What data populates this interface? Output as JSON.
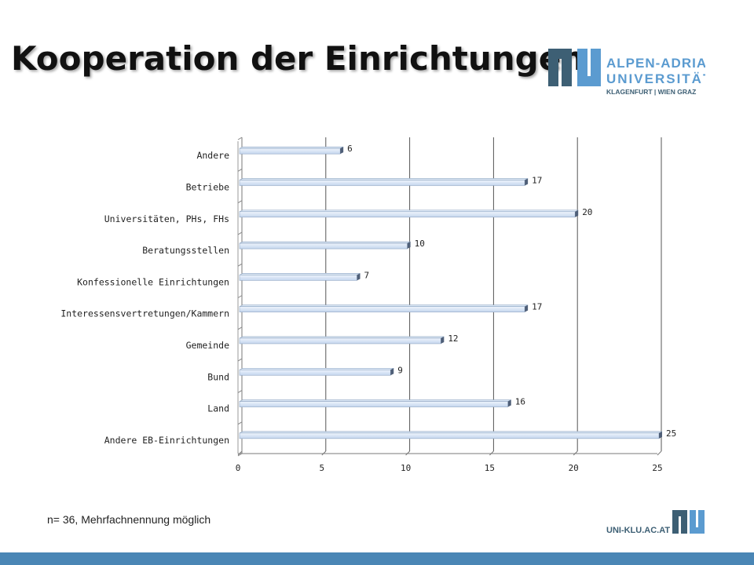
{
  "slide": {
    "title": "Kooperation der Einrichtungen",
    "footnote": "n= 36, Mehrfachnennung möglich"
  },
  "logo": {
    "line1": "ALPEN-ADRIA",
    "line2": "UNIVERSITÄT",
    "line3": "KLAGENFURT | WIEN GRAZ",
    "footer_url": "UNI-KLU.AC.AT"
  },
  "colors": {
    "brand_dark": "#3d5f74",
    "brand_light": "#5b9bd0",
    "bottom_bar": "#4a86b5",
    "bar_fill_top": "#eef4fc",
    "bar_fill_bottom": "#c4d6ee"
  },
  "chart_data": {
    "type": "bar",
    "orientation": "horizontal",
    "categories": [
      "Andere",
      "Betriebe",
      "Universitäten, PHs, FHs",
      "Beratungsstellen",
      "Konfessionelle Einrichtungen",
      "Interessensvertretungen/Kammern",
      "Gemeinde",
      "Bund",
      "Land",
      "Andere EB-Einrichtungen"
    ],
    "values": [
      6,
      17,
      20,
      10,
      7,
      17,
      12,
      9,
      16,
      25
    ],
    "xlim": [
      0,
      25
    ],
    "xticks": [
      "0",
      "5",
      "10",
      "15",
      "20",
      "25"
    ],
    "grid": true,
    "legend": "none",
    "data_labels": true
  }
}
